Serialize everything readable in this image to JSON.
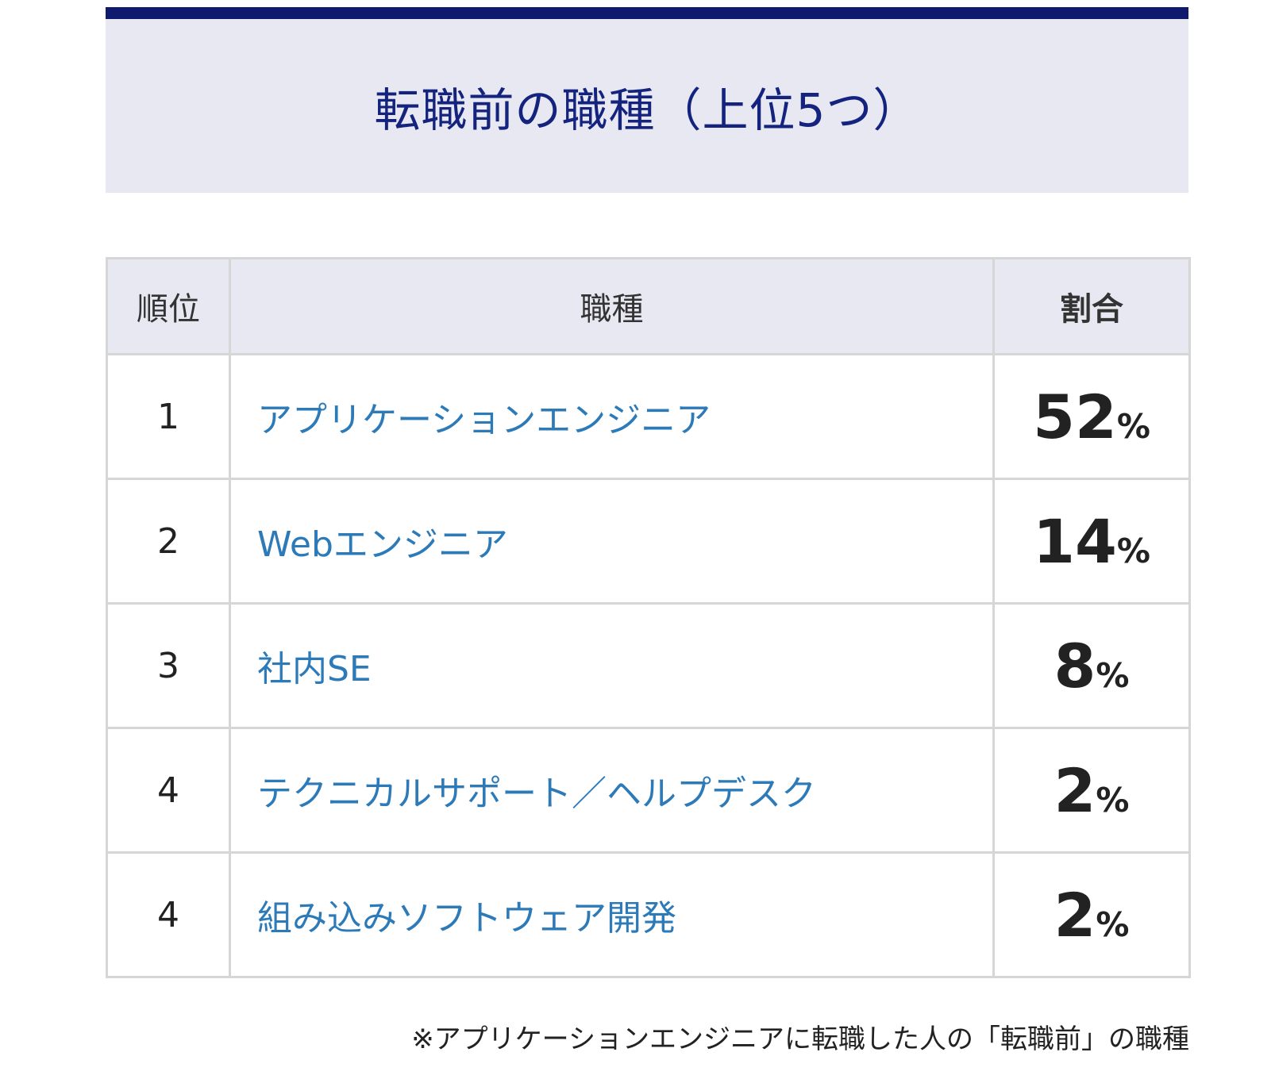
{
  "title": "転職前の職種（上位5つ）",
  "table": {
    "headers": {
      "rank": "順位",
      "job": "職種",
      "ratio": "割合"
    },
    "rows": [
      {
        "rank": "1",
        "job": "アプリケーションエンジニア",
        "value": "52",
        "unit": "%"
      },
      {
        "rank": "2",
        "job": "Webエンジニア",
        "value": "14",
        "unit": "%"
      },
      {
        "rank": "3",
        "job": "社内SE",
        "value": "8",
        "unit": "%"
      },
      {
        "rank": "4",
        "job": "テクニカルサポート／ヘルプデスク",
        "value": "2",
        "unit": "%"
      },
      {
        "rank": "4",
        "job": "組み込みソフトウェア開発",
        "value": "2",
        "unit": "%"
      }
    ]
  },
  "note": "※アプリケーションエンジニアに転職した人の「転職前」の職種",
  "colors": {
    "title_bar": "#0f1a6e",
    "title_text": "#14237d",
    "header_bg": "#e8e8f2",
    "job_link": "#2d7ab8"
  }
}
